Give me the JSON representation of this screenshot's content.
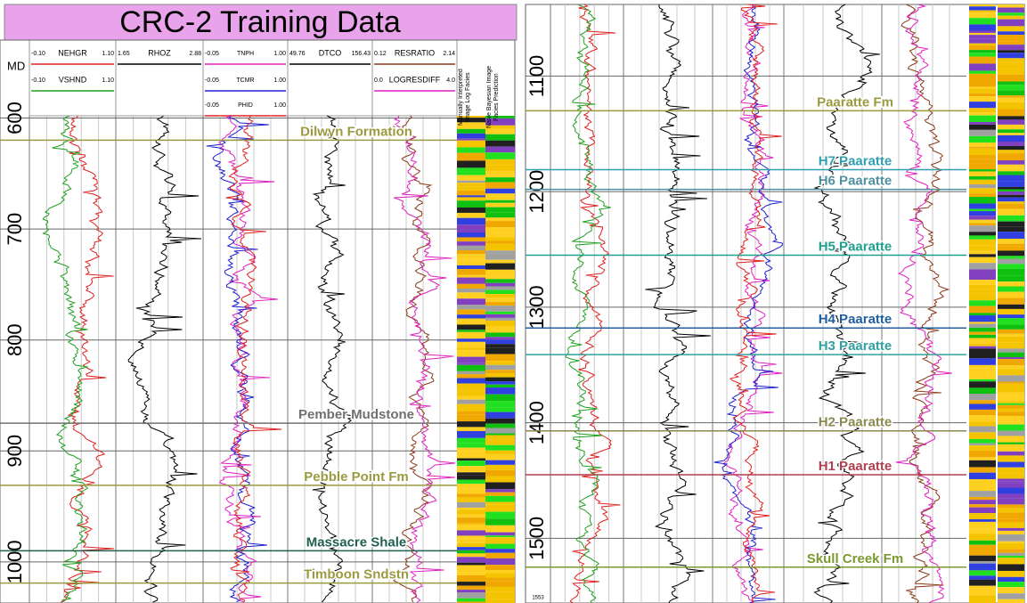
{
  "chart_data": {
    "type": "well-log",
    "title": "CRC-2 Training Data",
    "depth_label": "MD",
    "tracks": [
      {
        "curves": [
          {
            "name": "NEHGR",
            "min": "-0.10",
            "max": "1.10",
            "color": "#e02020"
          },
          {
            "name": "VSHND",
            "min": "-0.10",
            "max": "1.10",
            "color": "#20a020"
          }
        ]
      },
      {
        "curves": [
          {
            "name": "RHOZ",
            "min": "1.65",
            "max": "2.88",
            "color": "#000000"
          }
        ]
      },
      {
        "curves": [
          {
            "name": "TNPH",
            "min": "-0.05",
            "max": "1.00",
            "color": "#e020c0"
          },
          {
            "name": "TCMR",
            "min": "-0.05",
            "max": "1.00",
            "color": "#2020d0"
          },
          {
            "name": "PHID",
            "min": "-0.05",
            "max": "1.00",
            "color": "#e02020"
          }
        ]
      },
      {
        "curves": [
          {
            "name": "DTCO",
            "min": "49.76",
            "max": "156.43",
            "color": "#000000"
          }
        ]
      },
      {
        "curves": [
          {
            "name": "RESRATIO",
            "min": "0.12",
            "max": "2.14",
            "color": "#8b3a1a"
          },
          {
            "name": "LOGRESDIFF",
            "min": "0.0",
            "max": "4.0",
            "color": "#e020c0"
          }
        ]
      }
    ],
    "facies_headers": [
      "Manually Interpreted Image Log Facies",
      "Naive Bayesian Image Facies Prediction"
    ],
    "panels": [
      {
        "ylim": [
          598,
          1037
        ],
        "yticks": [
          600,
          700,
          800,
          900,
          1000
        ],
        "tops": [
          {
            "name": "Dilwyn Formation",
            "depth": 620,
            "color": "#9a9a40"
          },
          {
            "name": "Pember Mudstone",
            "depth": 875,
            "color": "#707070"
          },
          {
            "name": "Pebble Point Fm",
            "depth": 931,
            "color": "#9a9a40"
          },
          {
            "name": "Massacre Shale",
            "depth": 990,
            "color": "#206050"
          },
          {
            "name": "Timboon Sndstn",
            "depth": 1019,
            "color": "#9a9a40"
          }
        ]
      },
      {
        "ylim": [
          1038,
          1556
        ],
        "yticks": [
          1100,
          1200,
          1300,
          1400,
          1500
        ],
        "bottom_label": "1553",
        "tops": [
          {
            "name": "Paaratte Fm",
            "depth": 1130,
            "color": "#9a9a40"
          },
          {
            "name": "H7 Paaratte",
            "depth": 1181,
            "color": "#30a0b0"
          },
          {
            "name": "H6 Paaratte",
            "depth": 1198,
            "color": "#5090a0"
          },
          {
            "name": "H5 Paaratte",
            "depth": 1255,
            "color": "#20a090"
          },
          {
            "name": "H4 Paaratte",
            "depth": 1318,
            "color": "#2060a0"
          },
          {
            "name": "H3 Paaratte",
            "depth": 1341,
            "color": "#30a0a0"
          },
          {
            "name": "H2 Paaratte",
            "depth": 1407,
            "color": "#8a8a50"
          },
          {
            "name": "H1 Paaratte",
            "depth": 1445,
            "color": "#b04050"
          },
          {
            "name": "Skull Creek Fm",
            "depth": 1525,
            "color": "#7a9a30"
          }
        ]
      }
    ]
  }
}
